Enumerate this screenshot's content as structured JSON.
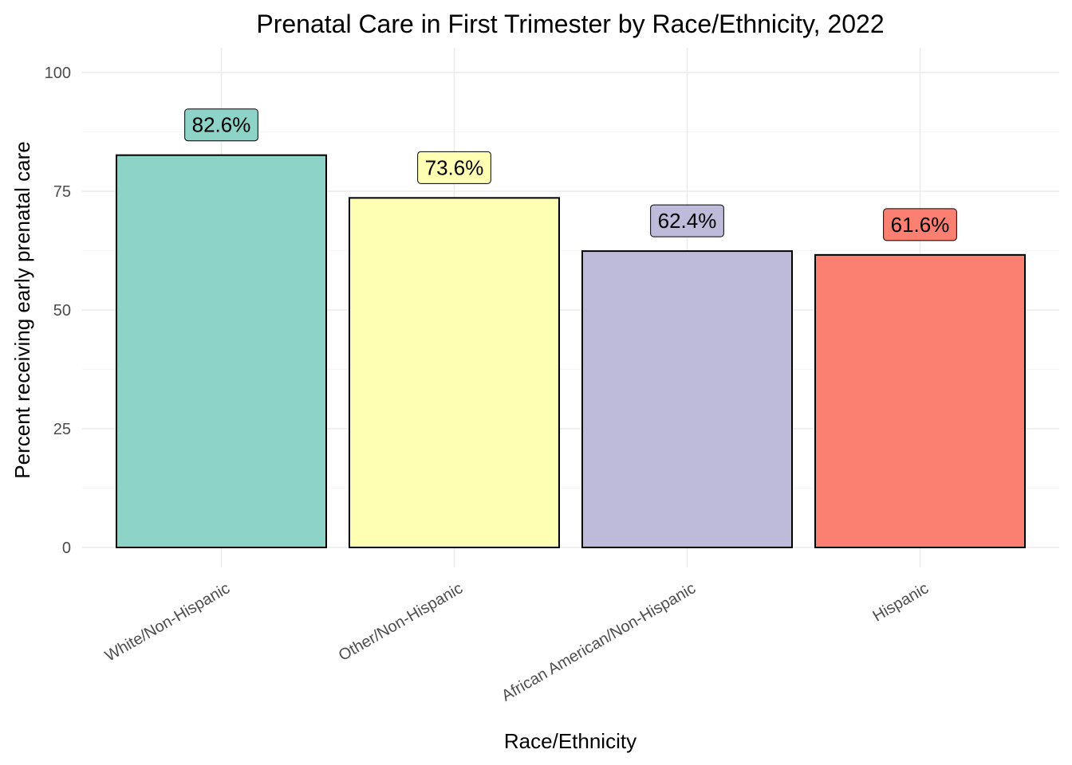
{
  "chart_data": {
    "type": "bar",
    "title": "Prenatal Care in First Trimester by Race/Ethnicity, 2022",
    "xlabel": "Race/Ethnicity",
    "ylabel": "Percent receiving early prenatal care",
    "categories": [
      "White/Non-Hispanic",
      "Other/Non-Hispanic",
      "African American/Non-Hispanic",
      "Hispanic"
    ],
    "values": [
      82.6,
      73.6,
      62.4,
      61.6
    ],
    "data_labels": [
      "82.6%",
      "73.6%",
      "62.4%",
      "61.6%"
    ],
    "colors": [
      "#8dd3c7",
      "#ffffb3",
      "#bebada",
      "#fb8072"
    ],
    "ylim": [
      0,
      100
    ],
    "yticks": [
      0,
      25,
      50,
      75,
      100
    ],
    "ytick_labels": [
      "0",
      "25",
      "50",
      "75",
      "100"
    ],
    "grid": true,
    "legend": "none"
  }
}
